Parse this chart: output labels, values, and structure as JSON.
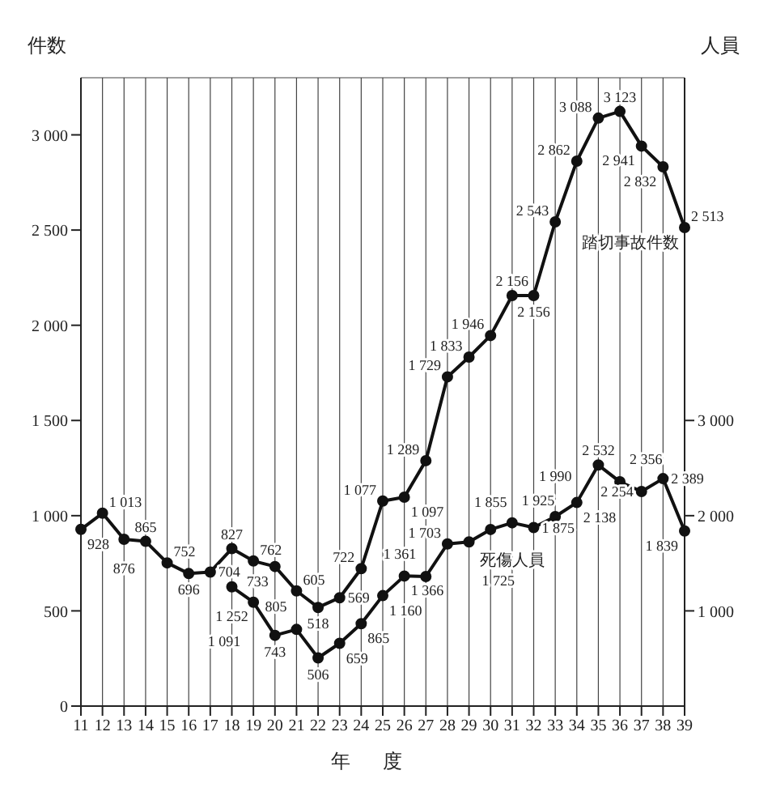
{
  "chart_data": {
    "type": "line",
    "xlabel": "年度",
    "ylabel": "件数",
    "y2label": "人員",
    "categories": [
      "11",
      "12",
      "13",
      "14",
      "15",
      "16",
      "17",
      "18",
      "19",
      "20",
      "21",
      "22",
      "23",
      "24",
      "25",
      "26",
      "27",
      "28",
      "29",
      "30",
      "31",
      "32",
      "33",
      "34",
      "35",
      "36",
      "37",
      "38",
      "39"
    ],
    "series": [
      {
        "name": "踏切事故件数",
        "color": "#111111",
        "values": [
          928,
          1013,
          876,
          865,
          752,
          696,
          704,
          827,
          762,
          733,
          605,
          518,
          569,
          722,
          1077,
          1097,
          1289,
          1729,
          1833,
          1946,
          2156,
          2156,
          2543,
          2862,
          3088,
          3123,
          2941,
          2832,
          2513
        ]
      },
      {
        "name": "死傷人員",
        "color": "#111111",
        "axis": "y2",
        "values": [
          null,
          null,
          null,
          null,
          null,
          null,
          null,
          1252,
          1091,
          743,
          805,
          506,
          659,
          865,
          1160,
          1366,
          1361,
          1703,
          1725,
          1855,
          1925,
          1875,
          1990,
          2138,
          2532,
          2356,
          2254,
          2389,
          1839
        ]
      }
    ],
    "ylim": [
      0,
      3300
    ],
    "yticks": [
      0,
      500,
      {
        "value": 1000,
        "label": "1 000"
      },
      {
        "value": 1500,
        "label": "1 500"
      },
      {
        "value": 2000,
        "label": "2 000"
      },
      {
        "value": 2500,
        "label": "2 500"
      },
      {
        "value": 3000,
        "label": "3 000"
      }
    ],
    "y2lim": [
      0,
      6600
    ],
    "y2ticks": [
      {
        "value": 1000,
        "label": "1 000"
      },
      {
        "value": 2000,
        "label": "2 000"
      },
      {
        "value": 3000,
        "label": "3 000"
      }
    ],
    "grid": true,
    "legend": false,
    "marker": "circle",
    "line_style": "solid",
    "data_labels": true
  }
}
